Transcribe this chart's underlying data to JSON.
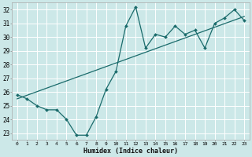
{
  "xlabel": "Humidex (Indice chaleur)",
  "bg_color": "#cce8e8",
  "grid_color": "#ffffff",
  "line_color": "#1a6b6b",
  "xlim": [
    -0.5,
    23.5
  ],
  "ylim": [
    22.5,
    32.5
  ],
  "xticks": [
    0,
    1,
    2,
    3,
    4,
    5,
    6,
    7,
    8,
    9,
    10,
    11,
    12,
    13,
    14,
    15,
    16,
    17,
    18,
    19,
    20,
    21,
    22,
    23
  ],
  "yticks": [
    23,
    24,
    25,
    26,
    27,
    28,
    29,
    30,
    31,
    32
  ],
  "data_x": [
    0,
    1,
    2,
    3,
    4,
    5,
    6,
    7,
    8,
    9,
    10,
    11,
    12,
    13,
    14,
    15,
    16,
    17,
    18,
    19,
    20,
    21,
    22,
    23
  ],
  "data_y": [
    25.8,
    25.5,
    25.0,
    24.7,
    24.7,
    24.0,
    22.85,
    22.85,
    24.2,
    26.2,
    27.5,
    30.8,
    32.2,
    29.2,
    30.2,
    30.0,
    30.8,
    30.2,
    30.5,
    29.2,
    31.0,
    31.4,
    32.0,
    31.2
  ],
  "trend_x": [
    0,
    23
  ],
  "trend_y": [
    25.5,
    31.5
  ]
}
